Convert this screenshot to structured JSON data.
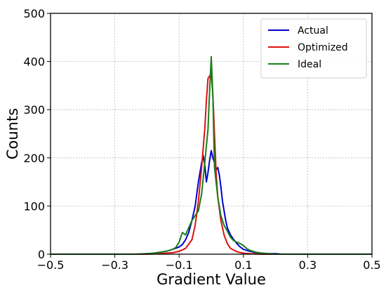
{
  "chart_data": {
    "type": "line",
    "title": "",
    "xlabel": "Gradient Value",
    "ylabel": "Counts",
    "xlim": [
      -0.5,
      0.5
    ],
    "ylim": [
      0,
      500
    ],
    "xticks": [
      -0.5,
      -0.3,
      -0.1,
      0.1,
      0.3,
      0.5
    ],
    "xtick_labels": [
      "−0.5",
      "−0.3",
      "−0.1",
      "0.1",
      "0.3",
      "0.5"
    ],
    "yticks": [
      0,
      100,
      200,
      300,
      400,
      500
    ],
    "ytick_labels": [
      "0",
      "100",
      "200",
      "300",
      "400",
      "500"
    ],
    "grid": true,
    "legend_position": "top-right",
    "series": [
      {
        "name": "Actual",
        "color": "#0000cc",
        "x": [
          -0.5,
          -0.22,
          -0.2,
          -0.18,
          -0.16,
          -0.14,
          -0.12,
          -0.1,
          -0.09,
          -0.08,
          -0.07,
          -0.06,
          -0.05,
          -0.04,
          -0.03,
          -0.025,
          -0.02,
          -0.015,
          -0.01,
          -0.005,
          0.0,
          0.005,
          0.01,
          0.015,
          0.02,
          0.025,
          0.03,
          0.035,
          0.04,
          0.045,
          0.05,
          0.06,
          0.07,
          0.08,
          0.09,
          0.1,
          0.12,
          0.14,
          0.16,
          0.18,
          0.2,
          0.22,
          0.5
        ],
        "y": [
          0,
          0,
          1,
          2,
          4,
          6,
          10,
          15,
          20,
          30,
          45,
          70,
          100,
          150,
          190,
          205,
          185,
          150,
          170,
          195,
          215,
          200,
          190,
          175,
          180,
          165,
          140,
          110,
          90,
          70,
          55,
          40,
          30,
          22,
          15,
          10,
          6,
          3,
          2,
          1,
          1,
          0,
          0
        ]
      },
      {
        "name": "Optimized",
        "color": "#dd1111",
        "x": [
          -0.5,
          -0.2,
          -0.16,
          -0.12,
          -0.1,
          -0.08,
          -0.06,
          -0.05,
          -0.04,
          -0.03,
          -0.02,
          -0.015,
          -0.01,
          -0.005,
          0.0,
          0.005,
          0.01,
          0.015,
          0.02,
          0.03,
          0.04,
          0.05,
          0.06,
          0.08,
          0.1,
          0.12,
          0.16,
          0.2,
          0.5
        ],
        "y": [
          0,
          0,
          1,
          3,
          6,
          12,
          30,
          60,
          110,
          180,
          260,
          320,
          365,
          370,
          375,
          330,
          250,
          170,
          120,
          70,
          40,
          22,
          12,
          5,
          2,
          1,
          0,
          0,
          0
        ]
      },
      {
        "name": "Ideal",
        "color": "#1a7f1a",
        "x": [
          -0.5,
          -0.24,
          -0.2,
          -0.18,
          -0.16,
          -0.14,
          -0.12,
          -0.11,
          -0.1,
          -0.09,
          -0.08,
          -0.07,
          -0.06,
          -0.05,
          -0.04,
          -0.03,
          -0.02,
          -0.01,
          -0.005,
          0.0,
          0.005,
          0.01,
          0.02,
          0.03,
          0.04,
          0.05,
          0.06,
          0.07,
          0.08,
          0.09,
          0.1,
          0.11,
          0.12,
          0.14,
          0.16,
          0.2,
          0.5
        ],
        "y": [
          0,
          0,
          1,
          2,
          4,
          6,
          10,
          14,
          25,
          45,
          40,
          55,
          70,
          80,
          90,
          125,
          190,
          260,
          340,
          410,
          330,
          180,
          120,
          80,
          60,
          48,
          35,
          28,
          25,
          22,
          18,
          12,
          8,
          4,
          2,
          0,
          0
        ]
      }
    ]
  }
}
